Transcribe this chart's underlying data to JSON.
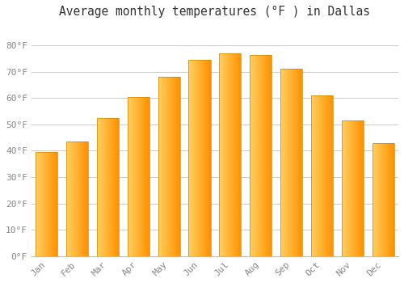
{
  "title": "Average monthly temperatures (°F ) in Dallas",
  "months": [
    "Jan",
    "Feb",
    "Mar",
    "Apr",
    "May",
    "Jun",
    "Jul",
    "Aug",
    "Sep",
    "Oct",
    "Nov",
    "Dec"
  ],
  "values": [
    39.5,
    43.5,
    52.5,
    60.5,
    68,
    74.5,
    77,
    76.5,
    71,
    61,
    51.5,
    43
  ],
  "bar_color_left": "#FFD060",
  "bar_color_right": "#FFA010",
  "background_color": "#FFFFFF",
  "grid_color": "#CCCCCC",
  "text_color": "#888888",
  "title_color": "#333333",
  "ylim": [
    0,
    88
  ],
  "yticks": [
    0,
    10,
    20,
    30,
    40,
    50,
    60,
    70,
    80
  ],
  "ytick_labels": [
    "0°F",
    "10°F",
    "20°F",
    "30°F",
    "40°F",
    "50°F",
    "60°F",
    "70°F",
    "80°F"
  ],
  "title_fontsize": 10.5,
  "tick_fontsize": 8,
  "font_family": "monospace",
  "bar_width": 0.72,
  "n_grad_segs": 80
}
